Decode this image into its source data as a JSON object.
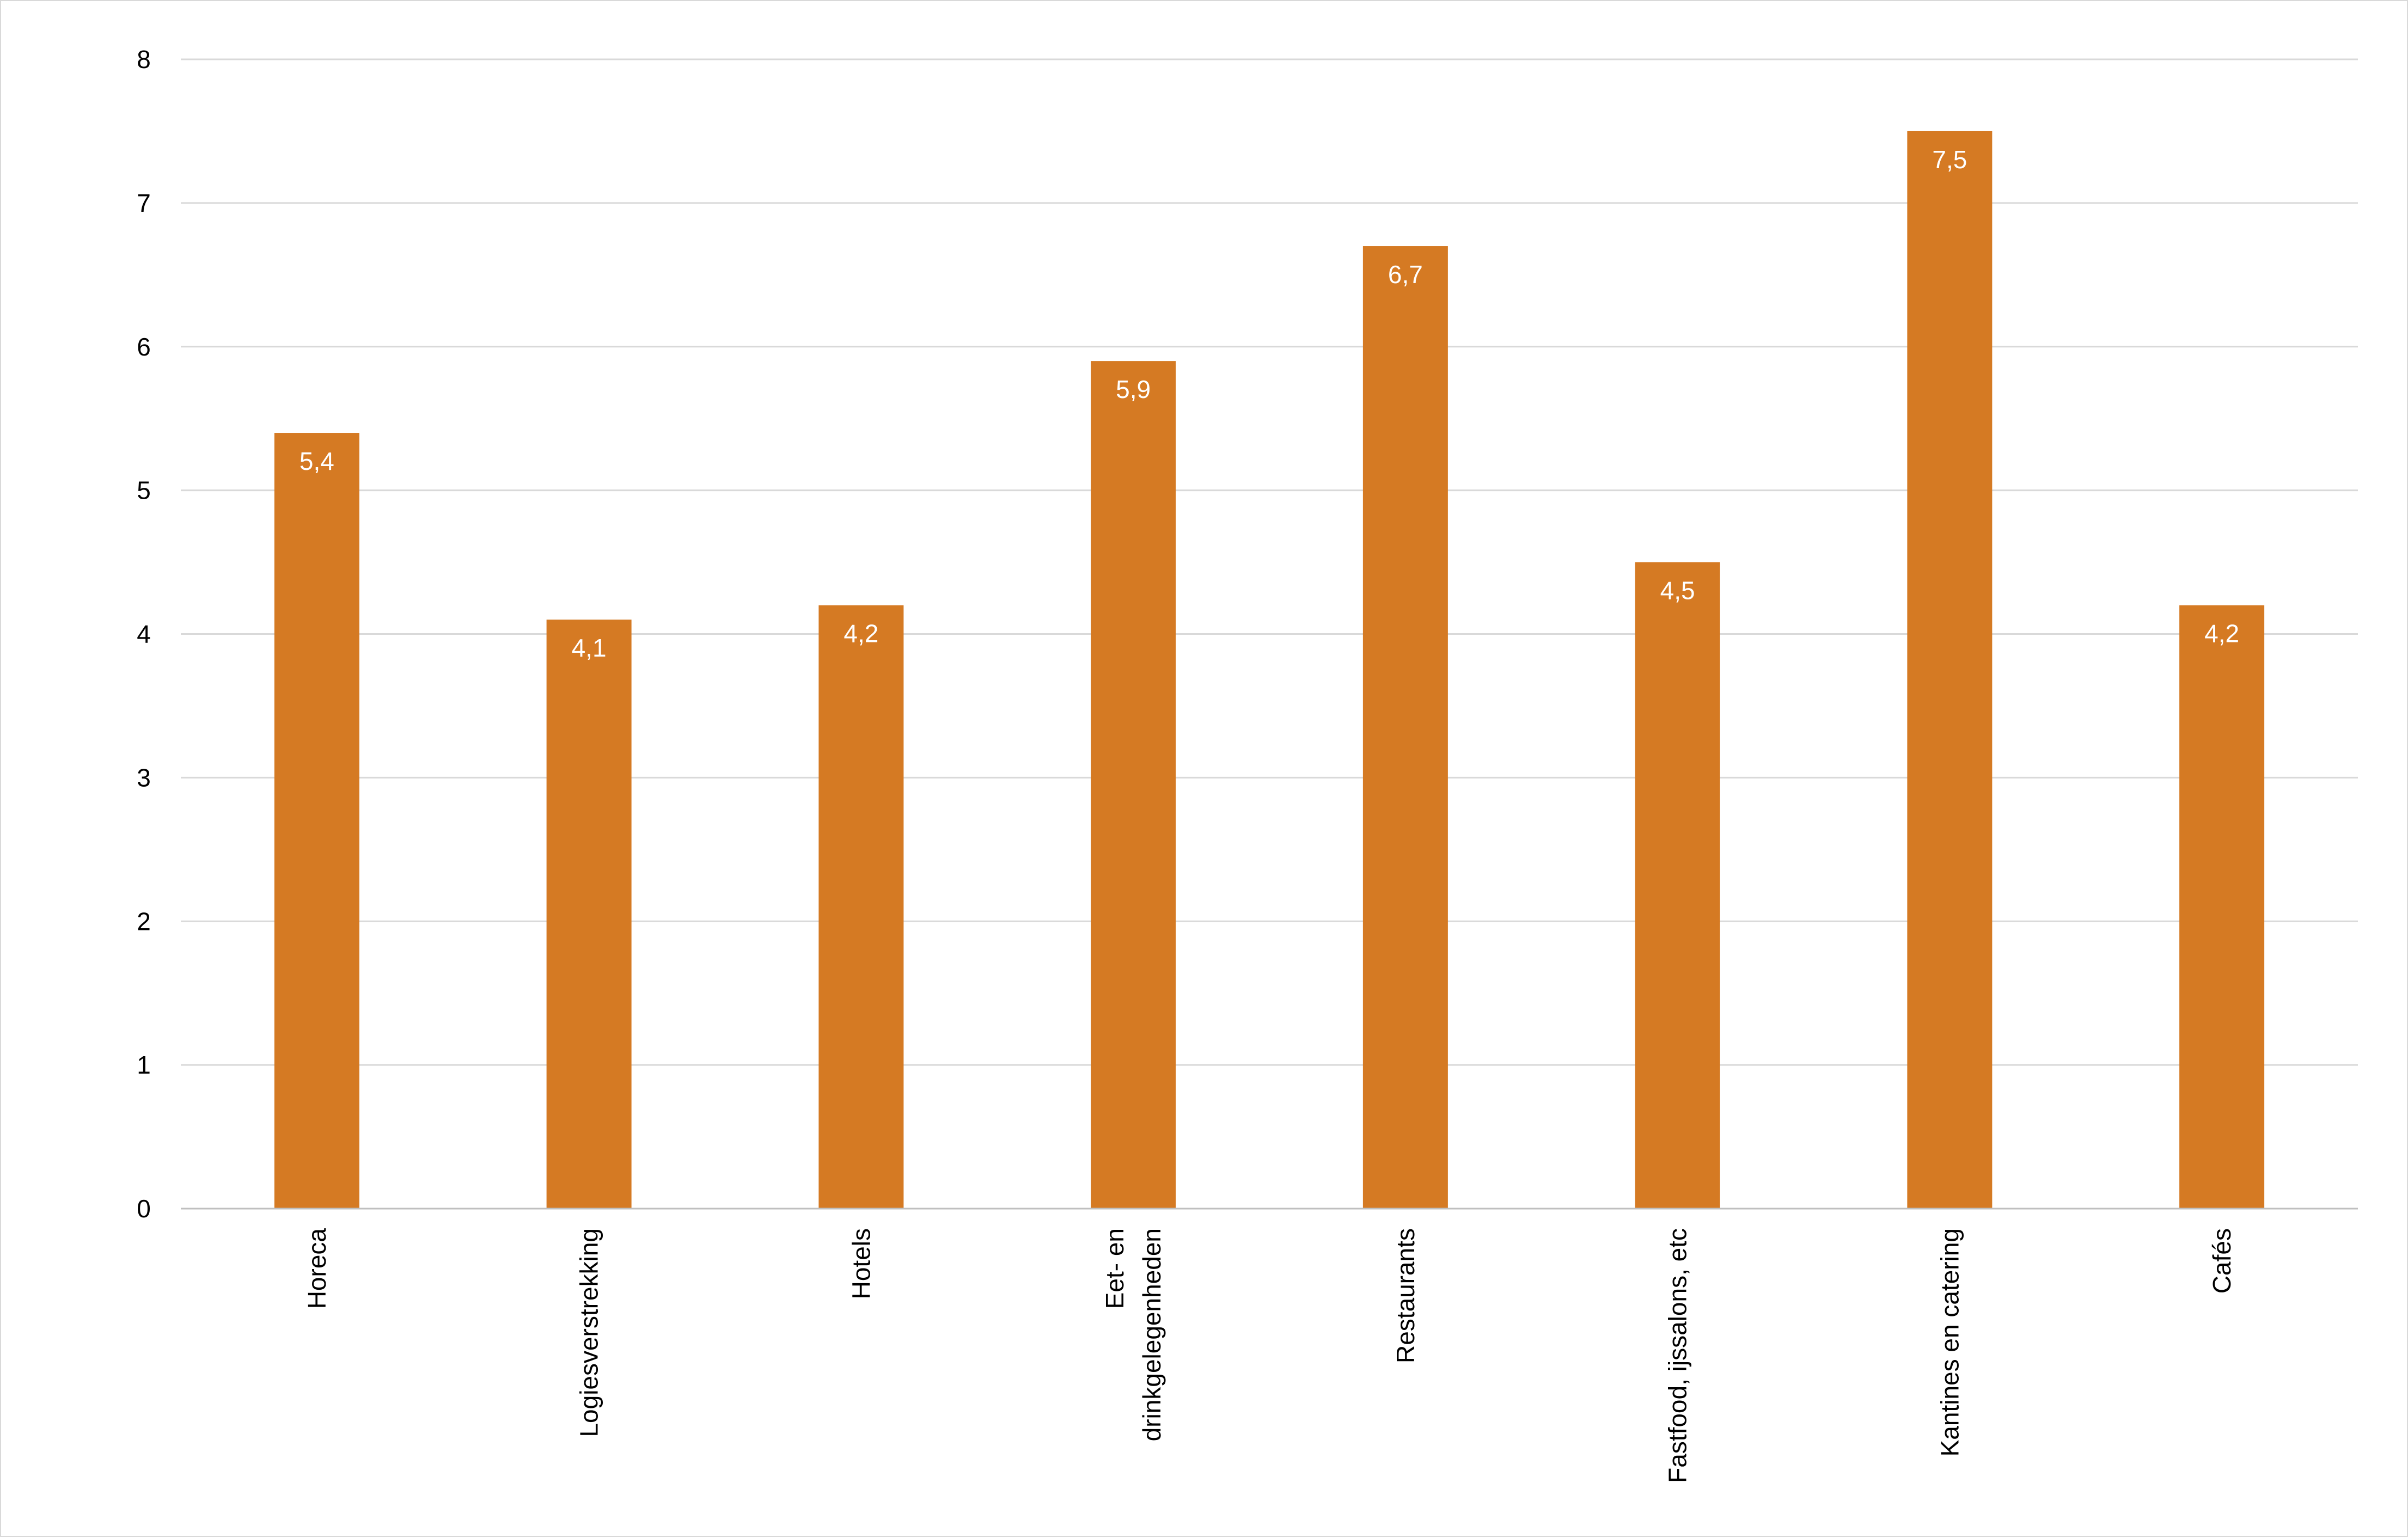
{
  "chart_data": {
    "type": "bar",
    "categories": [
      [
        "Horeca"
      ],
      [
        "Logiesverstrekking"
      ],
      [
        "Hotels"
      ],
      [
        "Eet- en",
        "drinkgelegenheden"
      ],
      [
        "Restaurants"
      ],
      [
        "Fastfood, ijssalons, etc"
      ],
      [
        "Kantines en catering"
      ],
      [
        "Cafés"
      ]
    ],
    "values": [
      5.4,
      4.1,
      4.2,
      5.9,
      6.7,
      4.5,
      7.5,
      4.2
    ],
    "data_labels": [
      "5,4",
      "4,1",
      "4,2",
      "5,9",
      "6,7",
      "4,5",
      "7,5",
      "4,2"
    ],
    "y_ticks": [
      "0",
      "1",
      "2",
      "3",
      "4",
      "5",
      "6",
      "7",
      "8"
    ],
    "ylim": [
      0,
      8
    ],
    "grid": true,
    "bar_color": "#d57a23",
    "title": "",
    "xlabel": "",
    "ylabel": ""
  }
}
